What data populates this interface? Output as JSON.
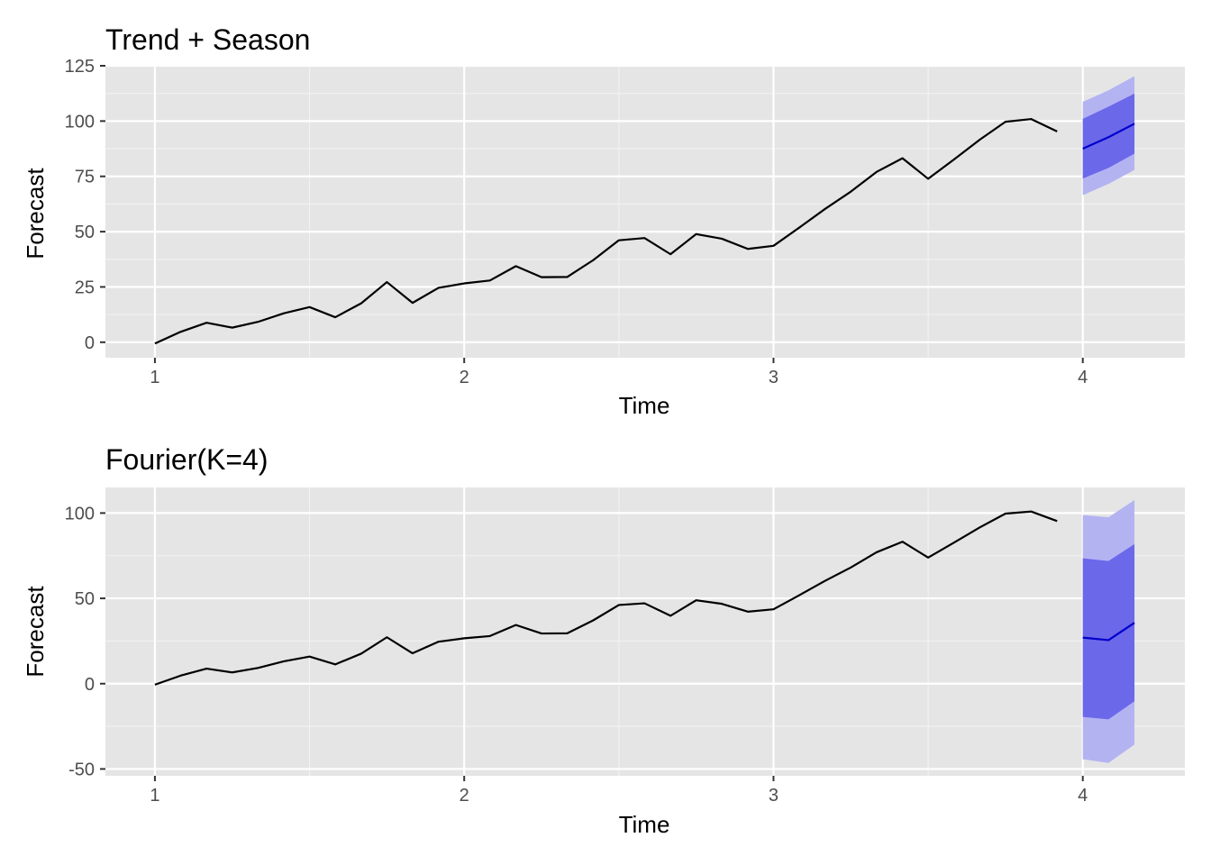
{
  "chart_data": [
    {
      "type": "line",
      "title": "Trend + Season",
      "xlabel": "Time",
      "ylabel": "Forecast",
      "xlim": [
        0.84,
        4.33
      ],
      "ylim": [
        -7,
        125
      ],
      "x_ticks": [
        1,
        2,
        3,
        4
      ],
      "x_tick_labels": [
        "1",
        "2",
        "3",
        "4"
      ],
      "y_ticks": [
        0,
        25,
        50,
        75,
        100,
        125
      ],
      "y_tick_labels": [
        "0",
        "25",
        "50",
        "75",
        "100",
        "125"
      ],
      "grid": true,
      "series": [
        {
          "role": "observed",
          "color": "#000000",
          "x": [
            1.0,
            1.083,
            1.167,
            1.25,
            1.333,
            1.417,
            1.5,
            1.583,
            1.667,
            1.75,
            1.833,
            1.917,
            2.0,
            2.083,
            2.167,
            2.25,
            2.333,
            2.417,
            2.5,
            2.583,
            2.667,
            2.75,
            2.833,
            2.917,
            3.0,
            3.083,
            3.167,
            3.25,
            3.333,
            3.417,
            3.5,
            3.583,
            3.667,
            3.75,
            3.833,
            3.917
          ],
          "y": [
            -0.6,
            4.7,
            8.8,
            6.6,
            9.2,
            13.1,
            15.9,
            11.3,
            17.6,
            27.2,
            17.8,
            24.6,
            26.6,
            27.9,
            34.4,
            29.4,
            29.5,
            37.1,
            46.1,
            47.1,
            39.8,
            48.9,
            46.8,
            42.2,
            43.6,
            51.8,
            60.3,
            68.1,
            77.0,
            83.2,
            73.9,
            82.6,
            91.6,
            99.7,
            100.9,
            95.3
          ]
        },
        {
          "role": "forecast",
          "color": "#0000cc",
          "x": [
            4.0,
            4.083,
            4.167
          ],
          "y": [
            87.5,
            92.7,
            98.8
          ],
          "pi80": {
            "lo": [
              74.0,
              78.8,
              85.3
            ],
            "hi": [
              101.0,
              106.5,
              112.4
            ],
            "color": "#6b68ea"
          },
          "pi95": {
            "lo": [
              66.5,
              71.6,
              77.9
            ],
            "hi": [
              108.7,
              113.9,
              120.3
            ],
            "color": "#b4b3f2"
          }
        }
      ]
    },
    {
      "type": "line",
      "title": "Fourier(K=4)",
      "xlabel": "Time",
      "ylabel": "Forecast",
      "xlim": [
        0.84,
        4.33
      ],
      "ylim": [
        -54,
        115
      ],
      "x_ticks": [
        1,
        2,
        3,
        4
      ],
      "x_tick_labels": [
        "1",
        "2",
        "3",
        "4"
      ],
      "y_ticks": [
        -50,
        0,
        50,
        100
      ],
      "y_tick_labels": [
        "-50",
        "0",
        "50",
        "100"
      ],
      "grid": true,
      "series": [
        {
          "role": "observed",
          "color": "#000000",
          "x": [
            1.0,
            1.083,
            1.167,
            1.25,
            1.333,
            1.417,
            1.5,
            1.583,
            1.667,
            1.75,
            1.833,
            1.917,
            2.0,
            2.083,
            2.167,
            2.25,
            2.333,
            2.417,
            2.5,
            2.583,
            2.667,
            2.75,
            2.833,
            2.917,
            3.0,
            3.083,
            3.167,
            3.25,
            3.333,
            3.417,
            3.5,
            3.583,
            3.667,
            3.75,
            3.833,
            3.917
          ],
          "y": [
            -0.6,
            4.7,
            8.8,
            6.6,
            9.2,
            13.1,
            15.9,
            11.3,
            17.6,
            27.2,
            17.8,
            24.6,
            26.6,
            27.9,
            34.4,
            29.4,
            29.5,
            37.1,
            46.1,
            47.1,
            39.8,
            48.9,
            46.8,
            42.2,
            43.6,
            51.8,
            60.3,
            68.1,
            77.0,
            83.2,
            73.9,
            82.6,
            91.6,
            99.7,
            100.9,
            95.3
          ]
        },
        {
          "role": "forecast",
          "color": "#0000cc",
          "x": [
            4.0,
            4.083,
            4.167
          ],
          "y": [
            27.0,
            25.5,
            35.7
          ],
          "pi80": {
            "lo": [
              -19.5,
              -20.9,
              -10.3
            ],
            "hi": [
              73.5,
              71.9,
              81.8
            ],
            "color": "#6b68ea"
          },
          "pi95": {
            "lo": [
              -44.3,
              -46.5,
              -35.7
            ],
            "hi": [
              98.8,
              97.6,
              107.6
            ],
            "color": "#b4b3f2"
          }
        }
      ]
    }
  ]
}
